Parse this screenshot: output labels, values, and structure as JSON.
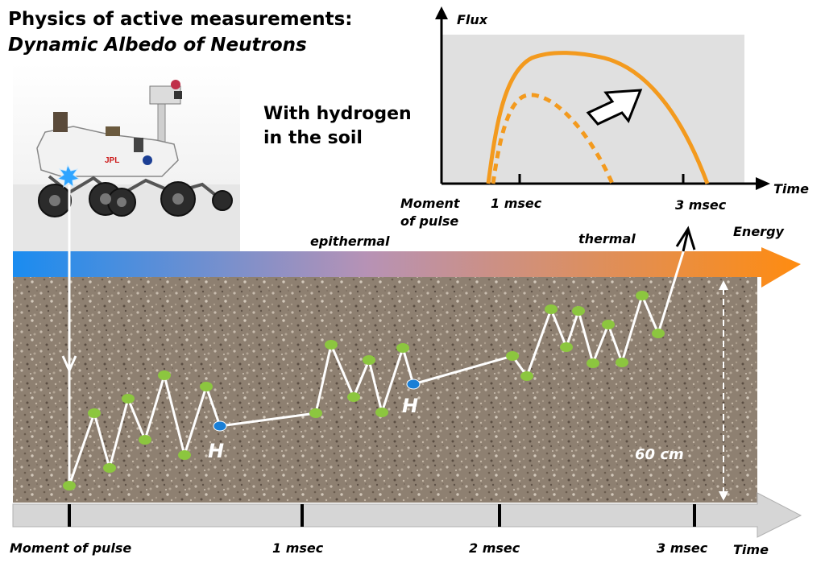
{
  "title": {
    "line1": "Physics of active measurements:",
    "line2": "Dynamic Albedo of Neutrons"
  },
  "inset_chart": {
    "y_axis_label": "Flux",
    "x_axis_label": "Time",
    "origin_label": "Moment\nof pulse",
    "tick_labels": [
      "1 msec",
      "3 msec"
    ],
    "annotation": "With hydrogen\nin the soil",
    "colors": {
      "curve": "#f39a1e",
      "panel": "#e0e0e0"
    }
  },
  "energy_bar": {
    "label": "Energy",
    "epithermal_label": "epithermal",
    "thermal_label": "thermal",
    "colors": {
      "start": "#1a8cf0",
      "mid": "#b792b5",
      "end": "#ff8c10"
    }
  },
  "soil": {
    "depth_label": "60 cm",
    "hydrogen_label": "H",
    "colors": {
      "collision": "#8cc63f",
      "hydrogen": "#1a7fd6",
      "path": "#ffffff"
    }
  },
  "time_axis": {
    "label": "Time",
    "tick_labels": [
      "Moment of pulse",
      "1 msec",
      "2 msec",
      "3 msec"
    ]
  },
  "rover": {
    "labels": [
      "JPL"
    ]
  }
}
